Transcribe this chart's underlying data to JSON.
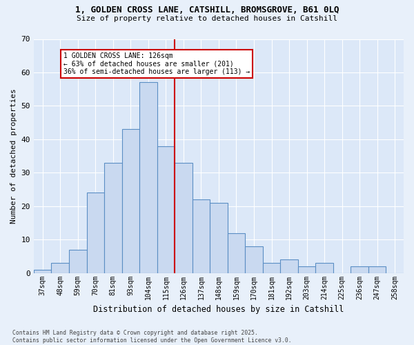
{
  "title_line1": "1, GOLDEN CROSS LANE, CATSHILL, BROMSGROVE, B61 0LQ",
  "title_line2": "Size of property relative to detached houses in Catshill",
  "xlabel": "Distribution of detached houses by size in Catshill",
  "ylabel": "Number of detached properties",
  "bins": [
    "37sqm",
    "48sqm",
    "59sqm",
    "70sqm",
    "81sqm",
    "93sqm",
    "104sqm",
    "115sqm",
    "126sqm",
    "137sqm",
    "148sqm",
    "159sqm",
    "170sqm",
    "181sqm",
    "192sqm",
    "203sqm",
    "214sqm",
    "225sqm",
    "236sqm",
    "247sqm",
    "258sqm"
  ],
  "values": [
    1,
    3,
    7,
    24,
    33,
    43,
    57,
    38,
    33,
    22,
    21,
    12,
    8,
    3,
    4,
    2,
    3,
    0,
    2,
    2,
    0
  ],
  "bar_color": "#c9d9f0",
  "bar_edge_color": "#5b8ec4",
  "vline_pos": 7.5,
  "vline_color": "#cc0000",
  "annotation_text": "1 GOLDEN CROSS LANE: 126sqm\n← 63% of detached houses are smaller (201)\n36% of semi-detached houses are larger (113) →",
  "annotation_box_color": "#cc0000",
  "ylim": [
    0,
    70
  ],
  "yticks": [
    0,
    10,
    20,
    30,
    40,
    50,
    60,
    70
  ],
  "bg_color": "#dce8f8",
  "fig_bg_color": "#e8f0fa",
  "grid_color": "#ffffff",
  "footnote": "Contains HM Land Registry data © Crown copyright and database right 2025.\nContains public sector information licensed under the Open Government Licence v3.0."
}
